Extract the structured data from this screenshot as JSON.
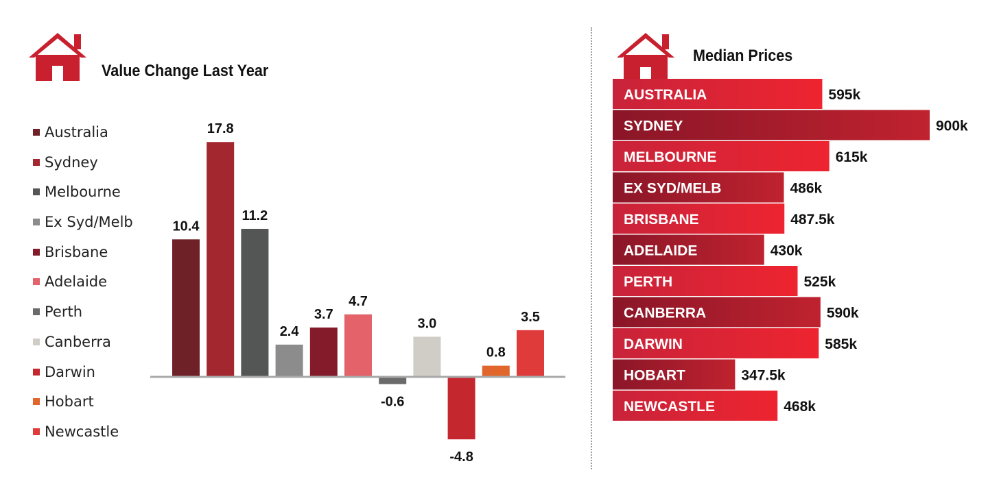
{
  "left_title": "Value Change Last Year",
  "right_title": "Median Prices",
  "icons": [
    "house-icon",
    "house-icon"
  ],
  "chart_data": [
    {
      "type": "bar",
      "title": "Value Change Last Year",
      "categories": [
        "Australia",
        "Sydney",
        "Melbourne",
        "Ex Syd/Melb",
        "Brisbane",
        "Adelaide",
        "Perth",
        "Canberra",
        "Darwin",
        "Hobart",
        "Newcastle"
      ],
      "values": [
        10.4,
        17.8,
        11.2,
        2.4,
        3.7,
        4.7,
        -0.6,
        3.0,
        -4.8,
        0.8,
        3.5
      ],
      "value_labels": [
        "10.4",
        "17.8",
        "11.2",
        "2.4",
        "3.7",
        "4.7",
        "-0.6",
        "3.0",
        "-4.8",
        "0.8",
        "3.5"
      ],
      "colors": [
        "#6e2127",
        "#a3272f",
        "#545555",
        "#8c8c8c",
        "#841b2b",
        "#e46269",
        "#6a6a6a",
        "#cfcdc6",
        "#c5272f",
        "#e0662c",
        "#df3b3a"
      ],
      "ylim": [
        -6,
        20
      ],
      "legend": "left",
      "grid": false
    },
    {
      "type": "bar",
      "orientation": "horizontal",
      "title": "Median Prices",
      "categories": [
        "AUSTRALIA",
        "SYDNEY",
        "MELBOURNE",
        "EX SYD/MELB",
        "BRISBANE",
        "ADELAIDE",
        "PERTH",
        "CANBERRA",
        "DARWIN",
        "HOBART",
        "NEWCASTLE"
      ],
      "values": [
        595,
        900,
        615,
        486,
        487.5,
        430,
        525,
        590,
        585,
        347.5,
        468
      ],
      "value_labels": [
        "595k",
        "900k",
        "615k",
        "486k",
        "487.5k",
        "430k",
        "525k",
        "590k",
        "585k",
        "347.5k",
        "468k"
      ],
      "unit": "k",
      "variants": [
        "bright",
        "dark",
        "bright",
        "dark",
        "bright",
        "dark",
        "bright",
        "dark",
        "bright",
        "dark",
        "bright"
      ],
      "colors": {
        "bright_start": "#c8233a",
        "bright_end": "#ee2430",
        "dark_start": "#8a1628",
        "dark_end": "#c0222f"
      },
      "grid": false
    }
  ]
}
